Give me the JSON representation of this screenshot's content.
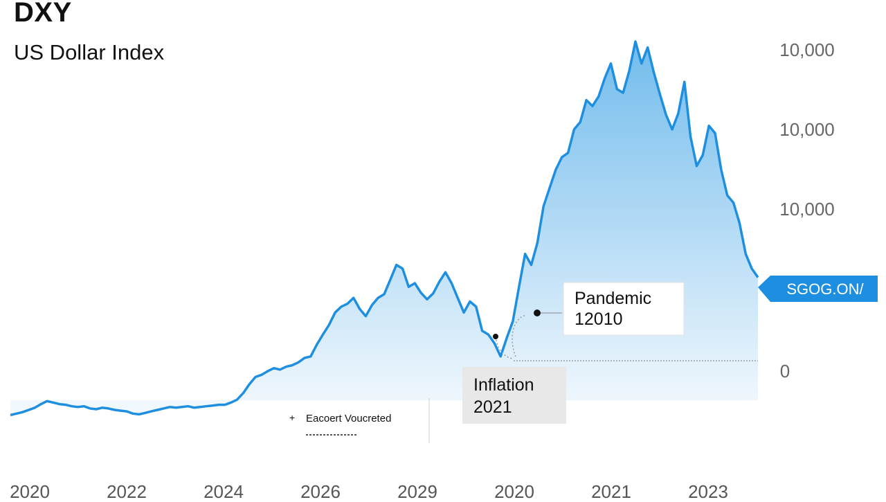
{
  "header": {
    "ticker": "DXY",
    "subtitle": "US Dollar Index"
  },
  "chart_data": {
    "type": "area",
    "title": "DXY",
    "subtitle": "US Dollar Index",
    "xlabel": "",
    "ylabel": "",
    "x_tick_labels": [
      "2020",
      "2022",
      "2024",
      "2026",
      "2029",
      "2020",
      "2021",
      "2023"
    ],
    "y_tick_labels": [
      "10,000",
      "10,000",
      "10,000",
      "0"
    ],
    "grid": false,
    "legend": "none",
    "series_color": "#1e8fe0",
    "fill_color_top": "#6ab8ec",
    "fill_color_bottom": "#f2f8fd",
    "current_value_label": "SGOG.ON/",
    "current_value_color": "#1e8fe0",
    "annotations": [
      {
        "name": "pandemic",
        "line1": "Pandemic",
        "line2": "12010"
      },
      {
        "name": "inflation",
        "line1": "Inflation",
        "line2": "2021"
      }
    ],
    "footnote": "Eacoert Voucreted",
    "series": [
      {
        "values": [
          10,
          12,
          14,
          17,
          20,
          25,
          29,
          27,
          25,
          24,
          22,
          21,
          22,
          19,
          18,
          20,
          19,
          17,
          16,
          15,
          12,
          11,
          13,
          15,
          17,
          19,
          21,
          20,
          21,
          22,
          20,
          21,
          22,
          23,
          24,
          24,
          27,
          31,
          40,
          52,
          62,
          65,
          70,
          74,
          72,
          76,
          78,
          82,
          88,
          90,
          106,
          120,
          133,
          150,
          158,
          162,
          170,
          155,
          145,
          160,
          170,
          175,
          195,
          215,
          210,
          185,
          190,
          177,
          168,
          176,
          192,
          205,
          190,
          170,
          150,
          165,
          158,
          125,
          120,
          108,
          90,
          115,
          138,
          185,
          230,
          215,
          245,
          295,
          320,
          345,
          362,
          368,
          400,
          410,
          440,
          432,
          445,
          470,
          490,
          455,
          450,
          480,
          520,
          490,
          512,
          478,
          448,
          420,
          400,
          422,
          465,
          390,
          350,
          365,
          405,
          395,
          345,
          310,
          300,
          272,
          230,
          210,
          198
        ]
      }
    ]
  }
}
